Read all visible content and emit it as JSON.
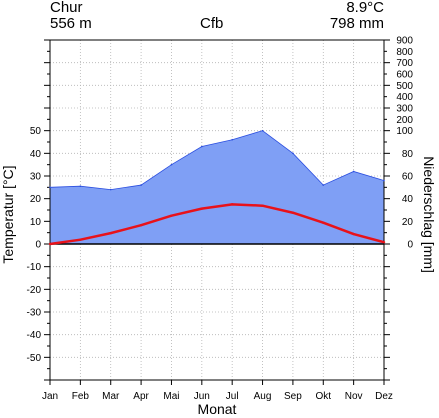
{
  "chart_data": {
    "type": "line",
    "header": {
      "station": "Chur",
      "elevation": "556 m",
      "climate_class": "Cfb",
      "mean_temperature": "8.9°C",
      "annual_precipitation": "798 mm"
    },
    "xlabel": "Monat",
    "ylabel_left": "Temperatur [°C]",
    "ylabel_right": "Niederschlag [mm]",
    "categories": [
      "Jan",
      "Feb",
      "Mar",
      "Apr",
      "Mai",
      "Jun",
      "Jul",
      "Aug",
      "Sep",
      "Okt",
      "Nov",
      "Dez"
    ],
    "temperature_ylim": [
      -60,
      90
    ],
    "temperature_ticks": [
      50,
      40,
      30,
      20,
      10,
      0,
      -10,
      -20,
      -30,
      -40,
      -50
    ],
    "precipitation_ticks": [
      900,
      800,
      700,
      600,
      500,
      400,
      300,
      200,
      100,
      80,
      60,
      40,
      20,
      0
    ],
    "precipitation_scale_note": "0-100 mm plotted at 2 mm per °C; above 100 mm at 20 mm per °C",
    "series": [
      {
        "name": "Temperatur",
        "axis": "left",
        "values": [
          0.0,
          1.9,
          4.8,
          8.3,
          12.5,
          15.6,
          17.5,
          16.9,
          13.8,
          9.4,
          4.4,
          0.8
        ]
      },
      {
        "name": "Niederschlag",
        "axis": "right",
        "values": [
          50,
          51,
          48,
          52,
          70,
          86,
          92,
          100,
          80,
          52,
          64,
          56
        ]
      }
    ],
    "colors": {
      "temperature": "#e8121a",
      "precipitation_fill": "#7f9ff5",
      "precipitation_line": "#2b4ee0",
      "grid": "#b4b4b4",
      "zero_line": "#000000"
    },
    "grid": true
  }
}
